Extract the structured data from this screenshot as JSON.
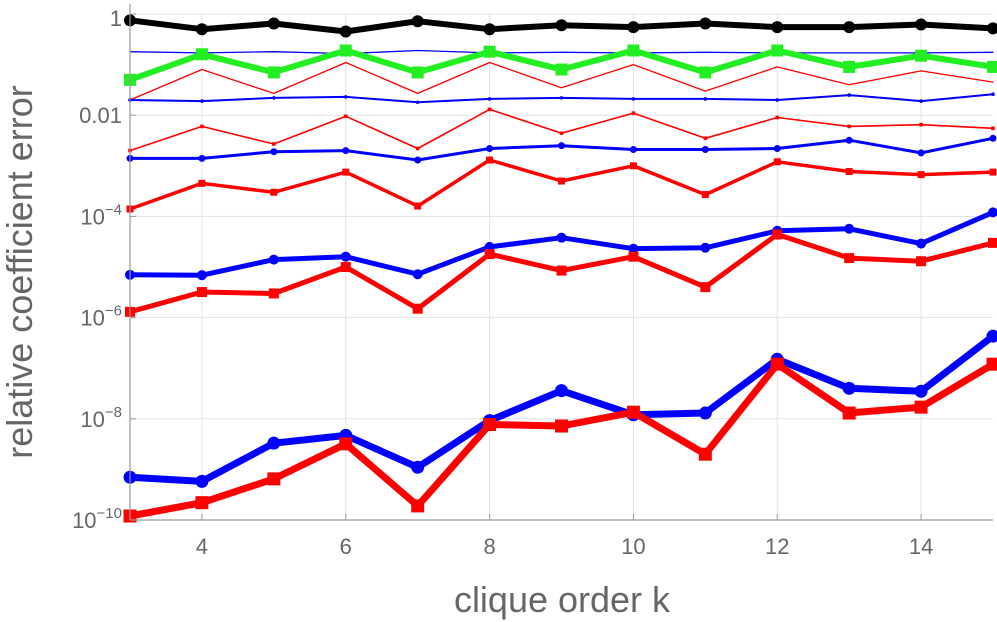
{
  "chart_data": {
    "type": "line",
    "title": "",
    "xlabel": "clique order  k",
    "ylabel": "relative coefficient error",
    "xlim": [
      3,
      15
    ],
    "ylim": [
      1e-10,
      1
    ],
    "y_scale": "log",
    "grid": true,
    "x_ticks": [
      4,
      6,
      8,
      10,
      12,
      14
    ],
    "y_ticks": [
      {
        "value": 1e-10,
        "mantissa": "10",
        "exp": "−10"
      },
      {
        "value": 1e-08,
        "mantissa": "10",
        "exp": "−8"
      },
      {
        "value": 1e-06,
        "mantissa": "10",
        "exp": "−6"
      },
      {
        "value": 0.0001,
        "mantissa": "10",
        "exp": "−4"
      },
      {
        "value": 0.01,
        "mantissa": "0.01",
        "exp": ""
      },
      {
        "value": 1,
        "mantissa": "1",
        "exp": ""
      }
    ],
    "x": [
      3,
      4,
      5,
      6,
      7,
      8,
      9,
      10,
      11,
      12,
      13,
      14,
      15
    ],
    "series": [
      {
        "color": "#000000",
        "width": 6,
        "marker": "circle",
        "marker_size": 6,
        "values": [
          0.75,
          0.5,
          0.65,
          0.45,
          0.72,
          0.5,
          0.6,
          0.55,
          0.65,
          0.55,
          0.55,
          0.62,
          0.52
        ]
      },
      {
        "color": "#0000ff",
        "width": 1.3,
        "marker": "none",
        "marker_size": 0,
        "values": [
          0.18,
          0.17,
          0.18,
          0.165,
          0.19,
          0.17,
          0.175,
          0.17,
          0.175,
          0.17,
          0.17,
          0.17,
          0.175
        ]
      },
      {
        "color": "#22ee22",
        "width": 6,
        "marker": "square",
        "marker_size": 6,
        "values": [
          0.05,
          0.16,
          0.07,
          0.19,
          0.07,
          0.18,
          0.08,
          0.19,
          0.07,
          0.19,
          0.09,
          0.15,
          0.09
        ]
      },
      {
        "color": "#ff0000",
        "width": 1.3,
        "marker": "none",
        "marker_size": 0,
        "values": [
          0.02,
          0.08,
          0.027,
          0.11,
          0.027,
          0.11,
          0.035,
          0.1,
          0.03,
          0.09,
          0.04,
          0.075,
          0.045
        ]
      },
      {
        "color": "#0000ff",
        "width": 2,
        "marker": "dot",
        "marker_size": 1.8,
        "values": [
          0.02,
          0.019,
          0.022,
          0.023,
          0.018,
          0.021,
          0.022,
          0.021,
          0.021,
          0.02,
          0.025,
          0.019,
          0.026
        ]
      },
      {
        "color": "#ff0000",
        "width": 1.6,
        "marker": "square",
        "marker_size": 1.8,
        "values": [
          0.002,
          0.006,
          0.0027,
          0.0095,
          0.0022,
          0.013,
          0.0044,
          0.011,
          0.0035,
          0.009,
          0.006,
          0.0065,
          0.0055
        ]
      },
      {
        "color": "#0000ff",
        "width": 3,
        "marker": "circle",
        "marker_size": 3.5,
        "values": [
          0.0014,
          0.0014,
          0.0019,
          0.002,
          0.0013,
          0.0022,
          0.0025,
          0.0021,
          0.0021,
          0.0022,
          0.0032,
          0.0018,
          0.0035
        ]
      },
      {
        "color": "#ff0000",
        "width": 3.5,
        "marker": "square",
        "marker_size": 3.5,
        "values": [
          0.00014,
          0.00045,
          0.0003,
          0.00075,
          0.00016,
          0.0013,
          0.0005,
          0.001,
          0.00027,
          0.0012,
          0.00077,
          0.00067,
          0.00075
        ]
      },
      {
        "color": "#0000ff",
        "width": 5,
        "marker": "circle",
        "marker_size": 5,
        "values": [
          7e-06,
          6.9e-06,
          1.4e-05,
          1.6e-05,
          7.2e-06,
          2.5e-05,
          3.8e-05,
          2.3e-05,
          2.4e-05,
          5.2e-05,
          5.7e-05,
          2.9e-05,
          0.00012
        ]
      },
      {
        "color": "#ff0000",
        "width": 5,
        "marker": "square",
        "marker_size": 5,
        "values": [
          1.3e-06,
          3.2e-06,
          3e-06,
          1e-05,
          1.5e-06,
          1.8e-05,
          8.5e-06,
          1.6e-05,
          4e-06,
          4.4e-05,
          1.5e-05,
          1.3e-05,
          3e-05
        ]
      },
      {
        "color": "#0000ff",
        "width": 7,
        "marker": "circle",
        "marker_size": 6.5,
        "values": [
          7e-10,
          5.8e-10,
          3.3e-09,
          4.7e-09,
          1.1e-09,
          9.2e-09,
          3.6e-08,
          1.2e-08,
          1.3e-08,
          1.5e-07,
          4e-08,
          3.5e-08,
          4.3e-07
        ]
      },
      {
        "color": "#ff0000",
        "width": 7,
        "marker": "square",
        "marker_size": 6.5,
        "values": [
          1.2e-10,
          2.2e-10,
          6.5e-10,
          3.2e-09,
          1.9e-10,
          7.7e-09,
          7.2e-09,
          1.35e-08,
          2e-09,
          1.2e-07,
          1.3e-08,
          1.7e-08,
          1.2e-07
        ]
      }
    ]
  }
}
